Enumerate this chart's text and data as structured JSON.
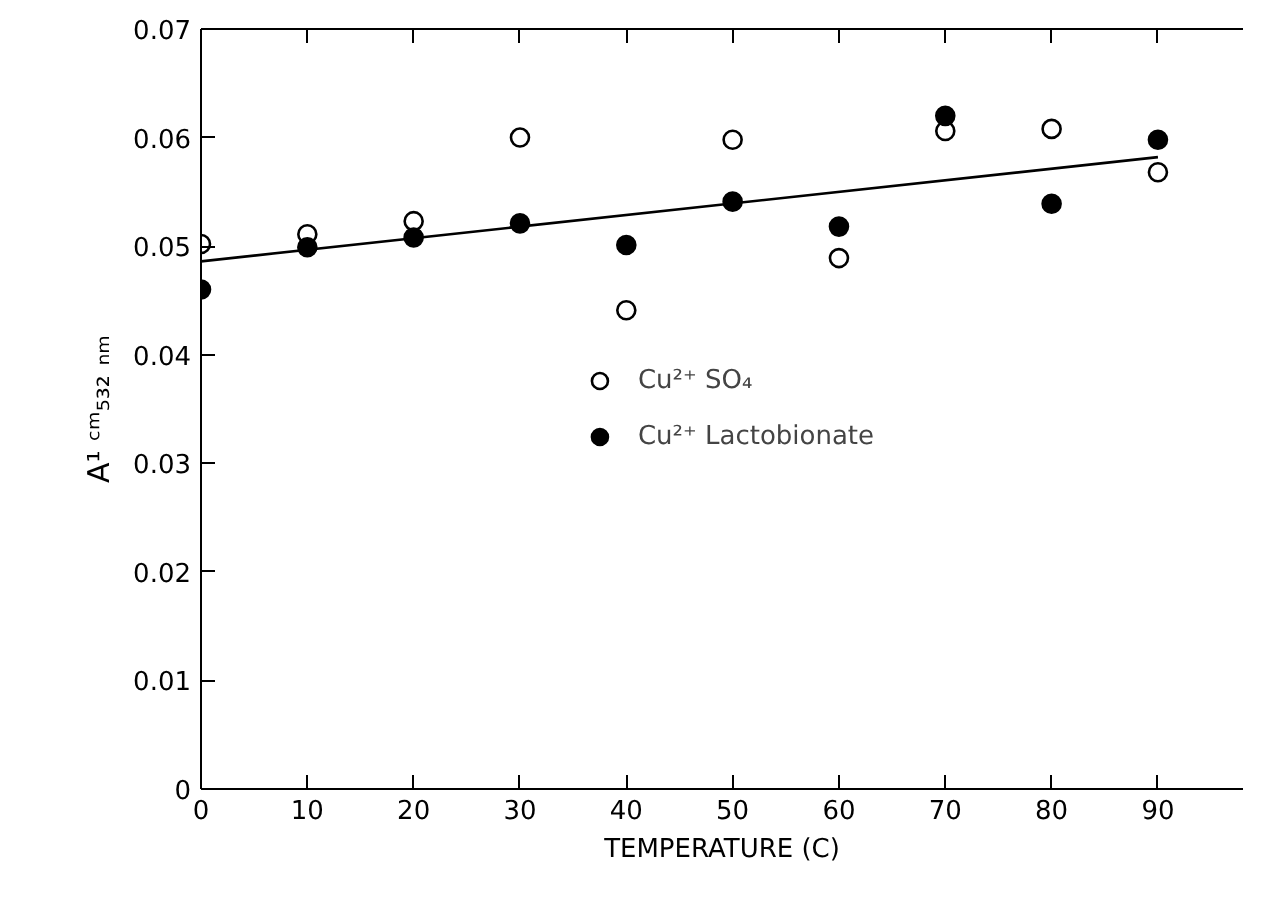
{
  "chart_data": {
    "type": "scatter",
    "xlabel": "TEMPERATURE (C)",
    "ylabel": "A¹ ᶜᵐ₅₃₂ ₙₘ",
    "x": [
      0,
      10,
      20,
      30,
      40,
      50,
      60,
      70,
      80,
      90
    ],
    "series": [
      {
        "name": "Cu²⁺ SO₄",
        "color": "#ffffff",
        "marker": "circle",
        "values": [
          0.0502,
          0.0511,
          0.0523,
          0.06,
          0.0441,
          0.0598,
          0.0489,
          0.0606,
          0.0608,
          0.0568
        ]
      },
      {
        "name": "Cu²⁺ Lactobionate",
        "color": "#000000",
        "marker": "circle",
        "values": [
          0.046,
          0.0499,
          0.0508,
          0.0521,
          0.0501,
          0.0541,
          0.0518,
          0.062,
          0.0539,
          0.0598
        ]
      },
      {
        "type": "line",
        "color": "#000000",
        "x": [
          0,
          90
        ],
        "values": [
          0.0486,
          0.0582
        ]
      }
    ],
    "xlim": [
      0,
      98
    ],
    "ylim": [
      0,
      0.07
    ],
    "xticks": [
      0,
      10,
      20,
      30,
      40,
      50,
      60,
      70,
      80,
      90
    ],
    "yticks": [
      0,
      0.01,
      0.02,
      0.03,
      0.04,
      0.05,
      0.06,
      0.07
    ],
    "grid": false,
    "legend": "center"
  }
}
